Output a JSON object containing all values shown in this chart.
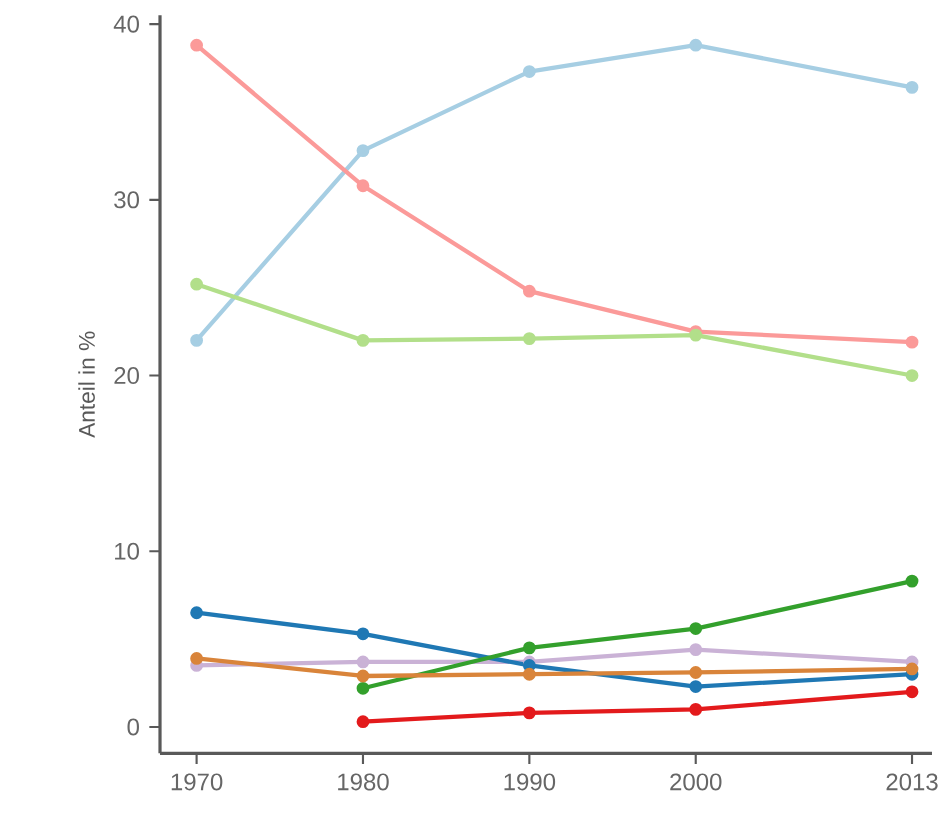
{
  "chart_data": {
    "type": "line",
    "ylabel": "Anteil in %",
    "x": [
      1970,
      1980,
      1990,
      2000,
      2013
    ],
    "xlim": [
      1967.8,
      2014.2
    ],
    "ylim": [
      -1.5,
      40.5
    ],
    "xticks": [
      1970,
      1980,
      1990,
      2000,
      2013
    ],
    "yticks": [
      0,
      10,
      20,
      30,
      40
    ],
    "marker": "circle",
    "line_style": "solid",
    "grid": false,
    "series": [
      {
        "color": "#a6cee3",
        "values": [
          22,
          32.8,
          37.3,
          38.8,
          36.4
        ]
      },
      {
        "color": "#fb9a99",
        "values": [
          38.8,
          30.8,
          24.8,
          22.5,
          21.9
        ]
      },
      {
        "color": "#b2df8a",
        "values": [
          25.2,
          22,
          22.1,
          22.3,
          20
        ]
      },
      {
        "color": "#cab2d6",
        "values": [
          3.5,
          3.7,
          3.7,
          4.4,
          3.7
        ]
      },
      {
        "color": "#1f78b4",
        "values": [
          6.5,
          5.3,
          3.5,
          2.3,
          3.0
        ]
      },
      {
        "color": "#33a02c",
        "values": [
          null,
          2.2,
          4.5,
          5.6,
          8.3
        ]
      },
      {
        "color": "#d9843a",
        "values": [
          3.9,
          2.9,
          3.0,
          3.1,
          3.3
        ]
      },
      {
        "color": "#e31a1c",
        "values": [
          null,
          0.3,
          0.8,
          1.0,
          2.0
        ]
      }
    ]
  }
}
